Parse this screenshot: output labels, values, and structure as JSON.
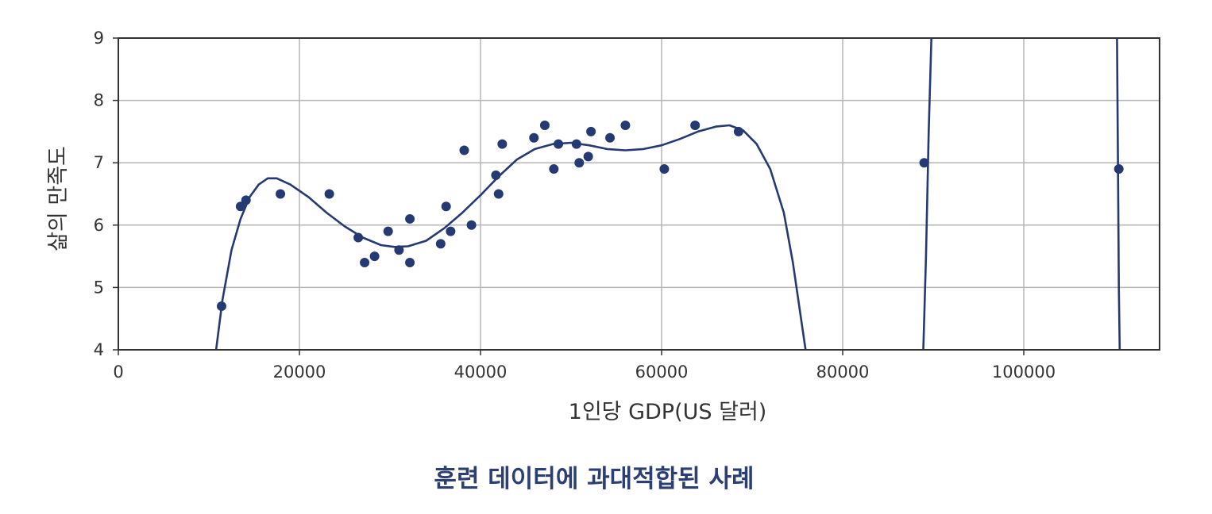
{
  "caption": "훈련 데이터에 과대적합된 사례",
  "colors": {
    "series": "#253a72",
    "grid": "#b5b5b5",
    "axis": "#333333",
    "caption": "#2b3f73"
  },
  "chart_data": {
    "type": "scatter",
    "xlabel": "1인당 GDP(US 달러)",
    "ylabel": "삶의 만족도",
    "xlim": [
      0,
      115000
    ],
    "ylim": [
      4,
      9
    ],
    "xticks": [
      0,
      20000,
      40000,
      60000,
      80000,
      100000
    ],
    "xtick_labels": [
      "0",
      "20000",
      "40000",
      "60000",
      "80000",
      "100000"
    ],
    "yticks": [
      4,
      5,
      6,
      7,
      8,
      9
    ],
    "ytick_labels": [
      "4",
      "5",
      "6",
      "7",
      "8",
      "9"
    ],
    "grid": true,
    "points": [
      [
        11400,
        4.7
      ],
      [
        13500,
        6.3
      ],
      [
        14100,
        6.4
      ],
      [
        17900,
        6.5
      ],
      [
        23300,
        6.5
      ],
      [
        26500,
        5.8
      ],
      [
        27200,
        5.4
      ],
      [
        28300,
        5.5
      ],
      [
        29800,
        5.9
      ],
      [
        31000,
        5.6
      ],
      [
        32200,
        6.1
      ],
      [
        32200,
        5.4
      ],
      [
        35600,
        5.7
      ],
      [
        36200,
        6.3
      ],
      [
        36700,
        5.9
      ],
      [
        38200,
        7.2
      ],
      [
        39000,
        6.0
      ],
      [
        41700,
        6.8
      ],
      [
        42000,
        6.5
      ],
      [
        42400,
        7.3
      ],
      [
        45900,
        7.4
      ],
      [
        47100,
        7.6
      ],
      [
        48100,
        6.9
      ],
      [
        48600,
        7.3
      ],
      [
        50600,
        7.3
      ],
      [
        50900,
        7.0
      ],
      [
        51900,
        7.1
      ],
      [
        52200,
        7.5
      ],
      [
        54300,
        7.4
      ],
      [
        56000,
        7.6
      ],
      [
        60300,
        6.9
      ],
      [
        63700,
        7.6
      ],
      [
        68500,
        7.5
      ],
      [
        89000,
        7.0
      ],
      [
        110500,
        6.9
      ]
    ],
    "fit_curve": [
      [
        10800,
        4.0
      ],
      [
        11500,
        4.8
      ],
      [
        12500,
        5.6
      ],
      [
        13500,
        6.1
      ],
      [
        14500,
        6.45
      ],
      [
        15500,
        6.65
      ],
      [
        16500,
        6.75
      ],
      [
        17500,
        6.75
      ],
      [
        19000,
        6.65
      ],
      [
        21000,
        6.45
      ],
      [
        23000,
        6.2
      ],
      [
        25000,
        5.98
      ],
      [
        27000,
        5.8
      ],
      [
        29000,
        5.68
      ],
      [
        30500,
        5.65
      ],
      [
        32000,
        5.66
      ],
      [
        34000,
        5.75
      ],
      [
        36000,
        5.95
      ],
      [
        38000,
        6.2
      ],
      [
        40000,
        6.48
      ],
      [
        42000,
        6.78
      ],
      [
        44000,
        7.05
      ],
      [
        46000,
        7.22
      ],
      [
        48000,
        7.3
      ],
      [
        50000,
        7.32
      ],
      [
        52000,
        7.28
      ],
      [
        54000,
        7.22
      ],
      [
        56000,
        7.2
      ],
      [
        58000,
        7.22
      ],
      [
        60000,
        7.28
      ],
      [
        62000,
        7.38
      ],
      [
        64000,
        7.5
      ],
      [
        66000,
        7.58
      ],
      [
        67500,
        7.6
      ],
      [
        69000,
        7.52
      ],
      [
        70500,
        7.3
      ],
      [
        72000,
        6.9
      ],
      [
        73500,
        6.2
      ],
      [
        74500,
        5.4
      ],
      [
        75500,
        4.4
      ],
      [
        75900,
        4.0
      ]
    ],
    "fit_curve_2": [
      [
        88900,
        4.0
      ],
      [
        89200,
        5.5
      ],
      [
        89500,
        7.5
      ],
      [
        89800,
        9.0
      ]
    ],
    "fit_curve_3": [
      [
        110300,
        9.0
      ],
      [
        110400,
        7.0
      ],
      [
        110500,
        5.0
      ],
      [
        110600,
        4.0
      ]
    ]
  }
}
